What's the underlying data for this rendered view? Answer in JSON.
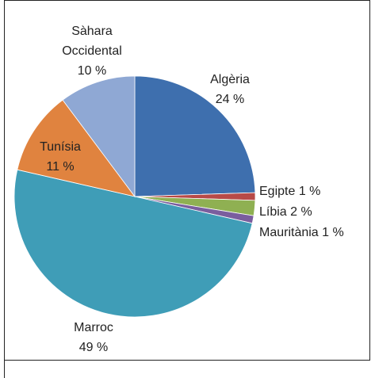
{
  "chart_data": {
    "type": "pie",
    "categories": [
      "Algèria",
      "Egipte",
      "Líbia",
      "Mauritània",
      "Marroc",
      "Tunísia",
      "Sàhara Occidental"
    ],
    "values": [
      24,
      1,
      2,
      1,
      49,
      11,
      10
    ],
    "value_labels": [
      "24 %",
      "1 %",
      "2 %",
      "1 %",
      "49 %",
      "11 %",
      "10 %"
    ],
    "colors": [
      "#3e6fae",
      "#b84a47",
      "#8fb052",
      "#7a5e9e",
      "#3f9db7",
      "#e0833f",
      "#8fa8d4"
    ]
  }
}
